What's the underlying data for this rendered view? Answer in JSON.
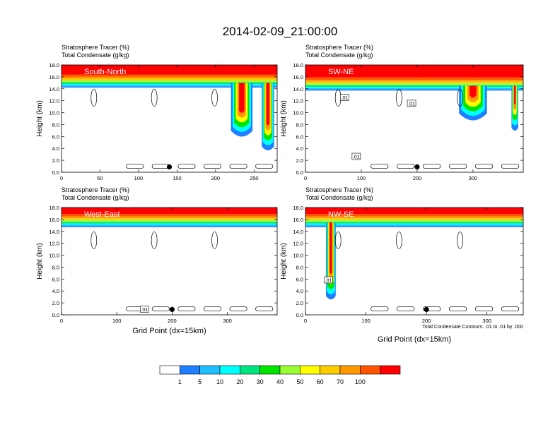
{
  "title": "2014-02-09_21:00:00",
  "colors": {
    "levels": [
      "#ffffff",
      "#1f7fff",
      "#1fbfff",
      "#00ffff",
      "#00e57f",
      "#00e500",
      "#99ff33",
      "#ffff00",
      "#ffcc00",
      "#ff9900",
      "#ff5500",
      "#ff0000"
    ],
    "contour": "#000000"
  },
  "chart_data": [
    {
      "type": "heatmap",
      "label": "South-North",
      "title_line1": "Stratosphere Tracer   (%)",
      "title_line2": "Total Condensate   (g/kg)",
      "ylabel": "Height (km)",
      "xlabel": "",
      "xlim": [
        0,
        280
      ],
      "ylim": [
        0,
        18
      ],
      "xticks": [
        0,
        50,
        100,
        150,
        200,
        250
      ],
      "yticks": [
        "0.0",
        "2.0",
        "4.0",
        "6.0",
        "8.0",
        "10.0",
        "12.0",
        "14.0",
        "16.0",
        "18.0"
      ],
      "marker_x": 140,
      "contour_labels": [],
      "tracer_base_km": 14.5,
      "intrusions": [
        {
          "x_center": 234,
          "width": 28,
          "bottom_km": 5.5
        },
        {
          "x_center": 268,
          "width": 16,
          "bottom_km": 3.5
        }
      ]
    },
    {
      "type": "heatmap",
      "label": "SW-NE",
      "title_line1": "Stratosphere Tracer   (%)",
      "title_line2": "Total Condensate   (g/kg)",
      "ylabel": "Height (km)",
      "xlabel": "",
      "xlim": [
        0,
        390
      ],
      "ylim": [
        0,
        18
      ],
      "xticks": [
        0,
        100,
        200,
        300
      ],
      "yticks": [
        "0.0",
        "2.0",
        "4.0",
        "6.0",
        "8.0",
        "10.0",
        "12.0",
        "14.0",
        "16.0",
        "18.0"
      ],
      "marker_x": 200,
      "contour_labels": [
        {
          "text": ".01",
          "x": 70,
          "y": 12.5
        },
        {
          "text": ".01",
          "x": 190,
          "y": 11.5
        },
        {
          "text": ".01",
          "x": 91,
          "y": 2.6
        }
      ],
      "tracer_base_km": 14.0,
      "intrusions": [
        {
          "x_center": 300,
          "width": 50,
          "bottom_km": 8.0
        },
        {
          "x_center": 375,
          "width": 12,
          "bottom_km": 7.0
        }
      ]
    },
    {
      "type": "heatmap",
      "label": "West-East",
      "title_line1": "Stratosphere Tracer   (%)",
      "title_line2": "Total Condensate   (g/kg)",
      "ylabel": "Height (km)",
      "xlabel": "Grid Point (dx=15km)",
      "xlim": [
        0,
        390
      ],
      "ylim": [
        0,
        18
      ],
      "xticks": [
        0,
        100,
        200,
        300
      ],
      "yticks": [
        "0.0",
        "2.0",
        "4.0",
        "6.0",
        "8.0",
        "10.0",
        "12.0",
        "14.0",
        "16.0",
        "18.0"
      ],
      "marker_x": 200,
      "contour_labels": [
        {
          "text": ".01",
          "x": 150,
          "y": 0.9
        }
      ],
      "tracer_base_km": 15.0,
      "intrusions": []
    },
    {
      "type": "heatmap",
      "label": "NW-SE",
      "title_line1": "Stratosphere Tracer   (%)",
      "title_line2": "Total Condensate   (g/kg)",
      "ylabel": "Height (km)",
      "xlabel": "Grid Point (dx=15km)",
      "xlim": [
        0,
        360
      ],
      "ylim": [
        0,
        18
      ],
      "xticks": [
        0,
        100,
        200,
        300
      ],
      "yticks": [
        "0.0",
        "2.0",
        "4.0",
        "6.0",
        "8.0",
        "10.0",
        "12.0",
        "14.0",
        "16.0",
        "18.0"
      ],
      "marker_x": 200,
      "contour_labels": [
        {
          "text": ".01",
          "x": 38,
          "y": 5.8
        }
      ],
      "tracer_base_km": 15.0,
      "intrusions": [
        {
          "x_center": 42,
          "width": 16,
          "bottom_km": 2.5
        }
      ],
      "footnote": "Total Condensate Contours: .01 to .01 by .000"
    }
  ],
  "colorbar": {
    "labels": [
      "1",
      "5",
      "10",
      "20",
      "30",
      "40",
      "50",
      "60",
      "70",
      "100"
    ]
  }
}
